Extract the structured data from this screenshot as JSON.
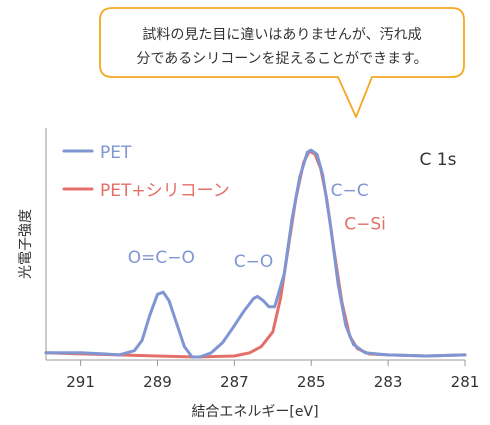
{
  "callout": {
    "line1": "試料の見た目に違いはありませんが、汚れ成",
    "line2": "分であるシリコーンを捉えることができます。"
  },
  "chart_data": {
    "type": "line",
    "title": "C 1s",
    "xlabel": "結合エネルギー[eV]",
    "ylabel": "光電子強度",
    "xlim": [
      291.9,
      281
    ],
    "x_ticks": [
      291,
      289,
      287,
      285,
      283,
      281
    ],
    "x_tick_labels": [
      "291",
      "289",
      "287",
      "285",
      "283",
      "281"
    ],
    "ylim": [
      0,
      1
    ],
    "legend_position": "top-left",
    "series": [
      {
        "name": "PET",
        "color": "#7f96d2",
        "points": [
          [
            291.9,
            0.02
          ],
          [
            291.0,
            0.02
          ],
          [
            290.4,
            0.015
          ],
          [
            290.0,
            0.01
          ],
          [
            289.6,
            0.03
          ],
          [
            289.4,
            0.08
          ],
          [
            289.2,
            0.2
          ],
          [
            289.0,
            0.3
          ],
          [
            288.85,
            0.31
          ],
          [
            288.7,
            0.27
          ],
          [
            288.5,
            0.16
          ],
          [
            288.3,
            0.05
          ],
          [
            288.1,
            0.0
          ],
          [
            287.9,
            0.0
          ],
          [
            287.6,
            0.02
          ],
          [
            287.3,
            0.07
          ],
          [
            287.0,
            0.15
          ],
          [
            286.75,
            0.22
          ],
          [
            286.5,
            0.28
          ],
          [
            286.4,
            0.29
          ],
          [
            286.25,
            0.27
          ],
          [
            286.1,
            0.24
          ],
          [
            285.95,
            0.24
          ],
          [
            285.7,
            0.4
          ],
          [
            285.5,
            0.66
          ],
          [
            285.3,
            0.86
          ],
          [
            285.1,
            0.98
          ],
          [
            285.0,
            0.99
          ],
          [
            284.85,
            0.97
          ],
          [
            284.7,
            0.87
          ],
          [
            284.5,
            0.63
          ],
          [
            284.3,
            0.35
          ],
          [
            284.1,
            0.15
          ],
          [
            283.9,
            0.06
          ],
          [
            283.6,
            0.02
          ],
          [
            283.0,
            0.01
          ],
          [
            282.0,
            0.005
          ],
          [
            281.0,
            0.01
          ]
        ]
      },
      {
        "name": "PET+シリコーン",
        "color": "#e46f68",
        "points": [
          [
            291.9,
            0.02
          ],
          [
            291.0,
            0.015
          ],
          [
            290.0,
            0.01
          ],
          [
            289.0,
            0.005
          ],
          [
            288.0,
            0.0
          ],
          [
            287.0,
            0.005
          ],
          [
            286.6,
            0.02
          ],
          [
            286.3,
            0.05
          ],
          [
            286.0,
            0.12
          ],
          [
            285.8,
            0.28
          ],
          [
            285.6,
            0.52
          ],
          [
            285.4,
            0.76
          ],
          [
            285.2,
            0.93
          ],
          [
            285.05,
            0.985
          ],
          [
            284.9,
            0.97
          ],
          [
            284.75,
            0.9
          ],
          [
            284.6,
            0.76
          ],
          [
            284.4,
            0.5
          ],
          [
            284.2,
            0.26
          ],
          [
            284.0,
            0.1
          ],
          [
            283.8,
            0.04
          ],
          [
            283.5,
            0.015
          ],
          [
            283.0,
            0.01
          ],
          [
            282.0,
            0.005
          ],
          [
            281.0,
            0.01
          ]
        ]
      }
    ],
    "annotations": [
      {
        "text": "O=C−O",
        "x": 288.9,
        "y": 0.45,
        "color": "#7f96d2"
      },
      {
        "text": "C−O",
        "x": 286.5,
        "y": 0.43,
        "color": "#7f96d2"
      },
      {
        "text": "C−C",
        "x": 284.0,
        "y": 0.77,
        "color": "#7f96d2"
      },
      {
        "text": "C−Si",
        "x": 283.6,
        "y": 0.61,
        "color": "#e46f68"
      }
    ]
  }
}
